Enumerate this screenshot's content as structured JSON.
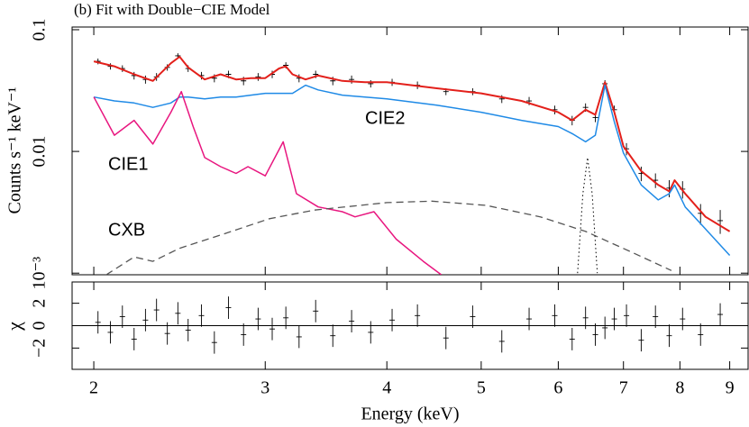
{
  "chart_data": [
    {
      "type": "line",
      "title": "(b) Fit with Double−CIE Model",
      "ylabel": "Counts s⁻¹ keV⁻¹",
      "xscale": "log",
      "yscale": "log",
      "xlim": [
        1.9,
        9.4
      ],
      "ylim": [
        0.00097,
        0.1052
      ],
      "yticks": [
        0.1,
        0.01,
        {
          "value": 0.001,
          "label": "10⁻³"
        }
      ],
      "series": [
        {
          "kind": "errorbar",
          "color": "#000000",
          "x": [
            2.02,
            2.08,
            2.14,
            2.2,
            2.26,
            2.32,
            2.38,
            2.44,
            2.5,
            2.58,
            2.66,
            2.75,
            2.85,
            2.95,
            3.05,
            3.15,
            3.25,
            3.38,
            3.52,
            3.68,
            3.85,
            4.05,
            4.3,
            4.6,
            4.9,
            5.25,
            5.6,
            5.95,
            6.2,
            6.4,
            6.55,
            6.7,
            6.85,
            7.05,
            7.3,
            7.55,
            7.8,
            8.05,
            8.4,
            8.8
          ],
          "values": [
            0.055,
            0.05,
            0.048,
            0.042,
            0.039,
            0.041,
            0.049,
            0.061,
            0.048,
            0.042,
            0.04,
            0.043,
            0.038,
            0.041,
            0.043,
            0.051,
            0.04,
            0.043,
            0.038,
            0.039,
            0.036,
            0.037,
            0.035,
            0.031,
            0.031,
            0.027,
            0.026,
            0.022,
            0.018,
            0.023,
            0.019,
            0.036,
            0.022,
            0.0105,
            0.0066,
            0.0058,
            0.005,
            0.0049,
            0.0031,
            0.0027
          ],
          "errors": [
            0.003,
            0.003,
            0.003,
            0.003,
            0.003,
            0.003,
            0.003,
            0.003,
            0.003,
            0.003,
            0.003,
            0.003,
            0.003,
            0.003,
            0.003,
            0.003,
            0.003,
            0.003,
            0.003,
            0.003,
            0.0025,
            0.0025,
            0.0025,
            0.002,
            0.002,
            0.002,
            0.002,
            0.0018,
            0.0016,
            0.0018,
            0.0016,
            0.0025,
            0.0018,
            0.0012,
            0.0009,
            0.0008,
            0.0008,
            0.0008,
            0.0006,
            0.0006
          ]
        },
        {
          "kind": "line",
          "color": "#e3201b",
          "width": 2,
          "x": [
            2.0,
            2.1,
            2.2,
            2.3,
            2.4,
            2.45,
            2.5,
            2.6,
            2.7,
            2.8,
            2.9,
            3.0,
            3.1,
            3.15,
            3.2,
            3.3,
            3.4,
            3.6,
            3.8,
            4.0,
            4.5,
            5.0,
            5.5,
            6.0,
            6.2,
            6.4,
            6.55,
            6.7,
            6.85,
            7.0,
            7.3,
            7.6,
            7.8,
            7.9,
            8.1,
            8.5,
            9.0
          ],
          "values": [
            0.055,
            0.05,
            0.043,
            0.038,
            0.053,
            0.06,
            0.049,
            0.039,
            0.043,
            0.039,
            0.04,
            0.04,
            0.048,
            0.05,
            0.043,
            0.039,
            0.042,
            0.038,
            0.037,
            0.037,
            0.033,
            0.03,
            0.026,
            0.021,
            0.018,
            0.022,
            0.02,
            0.037,
            0.021,
            0.011,
            0.0069,
            0.0053,
            0.0047,
            0.0058,
            0.0045,
            0.0029,
            0.0022
          ]
        },
        {
          "kind": "line",
          "name": "CIE2",
          "color": "#1f8ae6",
          "width": 1.5,
          "x": [
            2.0,
            2.1,
            2.2,
            2.3,
            2.4,
            2.45,
            2.5,
            2.6,
            2.7,
            2.8,
            2.9,
            3.0,
            3.1,
            3.15,
            3.2,
            3.3,
            3.4,
            3.6,
            3.8,
            4.0,
            4.5,
            5.0,
            5.5,
            6.0,
            6.2,
            6.4,
            6.55,
            6.7,
            6.85,
            7.0,
            7.3,
            7.6,
            7.8,
            7.9,
            8.1,
            8.5,
            9.0
          ],
          "values": [
            0.028,
            0.026,
            0.025,
            0.023,
            0.025,
            0.028,
            0.028,
            0.027,
            0.028,
            0.028,
            0.029,
            0.03,
            0.03,
            0.03,
            0.03,
            0.035,
            0.032,
            0.029,
            0.028,
            0.027,
            0.024,
            0.021,
            0.018,
            0.016,
            0.014,
            0.012,
            0.0136,
            0.035,
            0.0175,
            0.0097,
            0.0053,
            0.004,
            0.0045,
            0.0053,
            0.0035,
            0.0023,
            0.0014
          ]
        },
        {
          "kind": "line",
          "name": "CIE1",
          "color": "#e8167f",
          "width": 1.5,
          "x": [
            2.0,
            2.1,
            2.2,
            2.3,
            2.4,
            2.46,
            2.53,
            2.6,
            2.7,
            2.8,
            2.88,
            3.0,
            3.13,
            3.23,
            3.4,
            3.6,
            3.71,
            3.88,
            4.09,
            4.36,
            4.55
          ],
          "values": [
            0.028,
            0.0136,
            0.018,
            0.0115,
            0.021,
            0.031,
            0.016,
            0.0089,
            0.0075,
            0.0066,
            0.0075,
            0.0063,
            0.012,
            0.0045,
            0.0035,
            0.0032,
            0.0029,
            0.0032,
            0.0019,
            0.00125,
            0.00097
          ]
        },
        {
          "kind": "line",
          "name": "CXB",
          "color": "#555555",
          "width": 1.3,
          "dash": "dashed",
          "x": [
            2.06,
            2.2,
            2.3,
            2.45,
            2.72,
            3.03,
            3.37,
            4.0,
            4.45,
            5.06,
            5.75,
            6.4,
            7.12,
            7.84
          ],
          "values": [
            0.00097,
            0.00136,
            0.00125,
            0.0016,
            0.0021,
            0.0028,
            0.0033,
            0.0038,
            0.0039,
            0.0036,
            0.0029,
            0.0022,
            0.0015,
            0.00105
          ]
        },
        {
          "kind": "line",
          "color": "#000000",
          "width": 1,
          "dash": "dotted",
          "x": [
            6.28,
            6.36,
            6.43,
            6.5,
            6.58
          ],
          "values": [
            0.001,
            0.0045,
            0.0089,
            0.0045,
            0.001
          ]
        }
      ]
    },
    {
      "type": "line",
      "xlabel": "Energy (keV)",
      "ylabel": "χ",
      "xscale": "log",
      "yscale": "linear",
      "xlim": [
        1.9,
        9.4
      ],
      "ylim": [
        -3.9,
        3.9
      ],
      "xticks": [
        2,
        3,
        4,
        5,
        6,
        7,
        8,
        9
      ],
      "yticks": [
        {
          "value": -2,
          "label": "−2"
        },
        0,
        2
      ],
      "hline": 0,
      "series": [
        {
          "kind": "errorbar",
          "color": "#000000",
          "yerr": 1,
          "x": [
            2.02,
            2.08,
            2.14,
            2.2,
            2.26,
            2.32,
            2.38,
            2.44,
            2.5,
            2.58,
            2.66,
            2.75,
            2.85,
            2.95,
            3.05,
            3.15,
            3.25,
            3.38,
            3.52,
            3.68,
            3.85,
            4.05,
            4.3,
            4.6,
            4.9,
            5.25,
            5.6,
            5.95,
            6.2,
            6.4,
            6.55,
            6.7,
            6.85,
            7.05,
            7.3,
            7.55,
            7.8,
            8.05,
            8.4,
            8.8
          ],
          "values": [
            0.3,
            -0.6,
            0.8,
            -1.2,
            0.5,
            1.4,
            -0.7,
            1.1,
            -0.4,
            0.9,
            -1.5,
            1.6,
            -0.8,
            0.6,
            -0.3,
            0.7,
            -1.0,
            1.3,
            -0.9,
            0.4,
            -0.6,
            0.5,
            0.9,
            -1.1,
            0.8,
            -1.4,
            0.6,
            0.9,
            -1.2,
            0.7,
            -0.8,
            -0.2,
            0.6,
            0.9,
            -1.3,
            0.8,
            -0.9,
            0.6,
            -0.8,
            1.0
          ]
        }
      ]
    }
  ]
}
